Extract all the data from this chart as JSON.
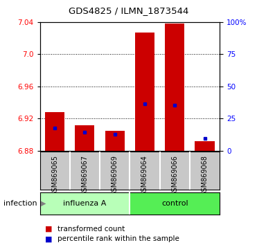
{
  "title": "GDS4825 / ILMN_1873544",
  "samples": [
    "GSM869065",
    "GSM869067",
    "GSM869069",
    "GSM869064",
    "GSM869066",
    "GSM869068"
  ],
  "red_values": [
    6.928,
    6.912,
    6.905,
    7.027,
    7.038,
    6.892
  ],
  "blue_values_y": [
    6.908,
    6.903,
    6.9,
    6.938,
    6.937,
    6.895
  ],
  "bar_bottom": 6.88,
  "ylim_left": [
    6.88,
    7.04
  ],
  "yticks_left": [
    6.88,
    6.92,
    6.96,
    7.0,
    7.04
  ],
  "ylim_right": [
    0,
    100
  ],
  "yticks_right": [
    0,
    25,
    50,
    75,
    100
  ],
  "yticklabels_right": [
    "0",
    "25",
    "50",
    "75",
    "100%"
  ],
  "bar_width": 0.65,
  "bar_color": "#cc0000",
  "dot_color": "#0000cc",
  "xlabel_group": "infection",
  "legend_red": "transformed count",
  "legend_blue": "percentile rank within the sample",
  "group_bg_light": "#b8ffb8",
  "group_bg_dark": "#55ee55",
  "sample_box_color": "#c8c8c8",
  "title_fontsize": 9.5,
  "tick_fontsize": 7.5,
  "label_fontsize": 7,
  "group_fontsize": 8,
  "legend_fontsize": 7.5
}
